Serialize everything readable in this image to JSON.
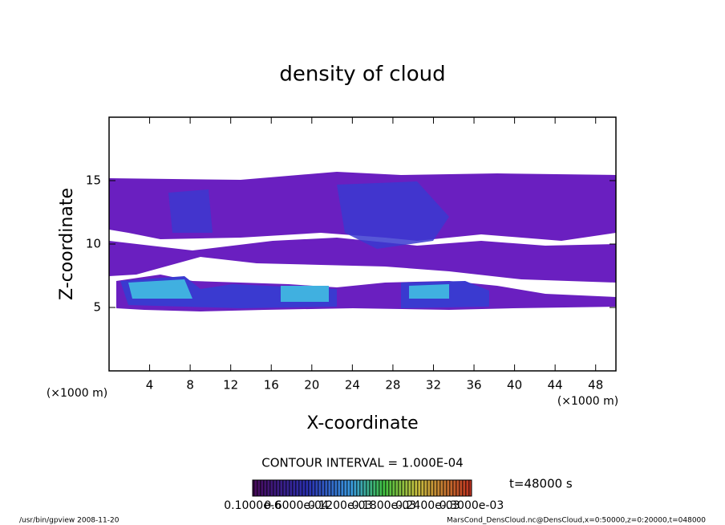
{
  "chart_data": {
    "type": "contour",
    "title": "density of cloud",
    "xlabel": "X-coordinate",
    "ylabel": "Z-coordinate",
    "x_unit_left": "(×1000 m)",
    "x_unit_right": "(×1000 m)",
    "xlim": [
      0,
      50
    ],
    "ylim": [
      0,
      20
    ],
    "xticks": [
      4,
      8,
      12,
      16,
      20,
      24,
      28,
      32,
      36,
      40,
      44,
      48
    ],
    "yticks": [
      5,
      10,
      15
    ],
    "contour_interval": "CONTOUR INTERVAL = 1.000E-04",
    "time_label": "t=48000 s",
    "colorbar_labels": [
      "0.1000e-6",
      "0.6000e-04",
      "0.1200e-03",
      "0.1800e-03",
      "0.2400e-03",
      "0.3000e-03"
    ],
    "footer_left": "/usr/bin/gpview   2008-11-20",
    "footer_right": "MarsCond_DensCloud.nc@DensCloud,x=0:50000,z=0:20000,t=048000"
  }
}
